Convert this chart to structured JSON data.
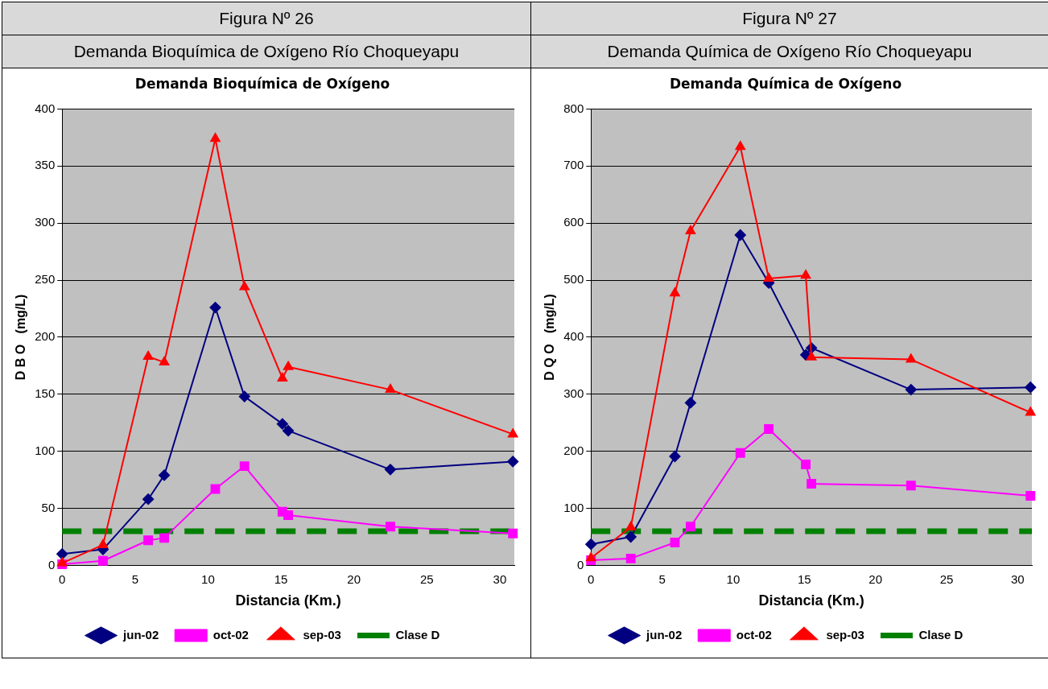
{
  "chart_data": [
    {
      "type": "line",
      "title": "Demanda Bioquímica de Oxígeno",
      "annotations": [
        "Figura Nº 26",
        "Demanda Bioquímica de Oxígeno Río Choqueyapu"
      ],
      "xlabel": "Distancia (Km.)",
      "ylabel": "D B O   (mg/L)",
      "x": [
        0,
        2.8,
        5.9,
        7,
        10.5,
        12.5,
        15.1,
        15.5,
        22.5,
        30.9
      ],
      "series": [
        {
          "name": "jun-02",
          "color": "#000080",
          "marker": "diamond",
          "values": [
            10,
            14,
            58,
            79,
            226,
            148,
            124,
            118,
            84,
            91
          ]
        },
        {
          "name": "oct-02",
          "color": "#ff00ff",
          "marker": "square",
          "values": [
            1,
            4,
            22,
            24,
            67,
            87,
            47,
            44,
            34,
            28
          ]
        },
        {
          "name": "sep-03",
          "color": "#ff0000",
          "marker": "triangle",
          "values": [
            2,
            18,
            183,
            178,
            374,
            244,
            164,
            174,
            154,
            115
          ]
        }
      ],
      "ref_lines": [
        {
          "axis": "y",
          "value": 30,
          "label": "Clase D",
          "color": "#008000",
          "line_style": "dashed"
        }
      ],
      "xlim": [
        0,
        31
      ],
      "xticks": [
        0,
        5,
        10,
        15,
        20,
        25,
        30
      ],
      "ylim": [
        0,
        400
      ],
      "yticks": [
        0,
        50,
        100,
        150,
        200,
        250,
        300,
        350,
        400
      ],
      "grid": "y",
      "legend": "bottom"
    },
    {
      "type": "line",
      "title": "Demanda Química de Oxígeno",
      "annotations": [
        "Figura Nº 27",
        "Demanda Química de Oxígeno Río Choqueyapu"
      ],
      "xlabel": "Distancia (Km.)",
      "ylabel": "D Q O   (mg/L)",
      "x": [
        0,
        2.8,
        5.9,
        7,
        10.5,
        12.5,
        15.1,
        15.5,
        22.5,
        30.9
      ],
      "series": [
        {
          "name": "jun-02",
          "color": "#000080",
          "marker": "diamond",
          "values": [
            37,
            50,
            191,
            285,
            579,
            495,
            369,
            381,
            308,
            312
          ]
        },
        {
          "name": "oct-02",
          "color": "#ff00ff",
          "marker": "square",
          "values": [
            9,
            12,
            40,
            68,
            197,
            239,
            177,
            143,
            140,
            122
          ]
        },
        {
          "name": "sep-03",
          "color": "#ff0000",
          "marker": "triangle",
          "values": [
            13,
            67,
            477,
            586,
            734,
            503,
            508,
            365,
            361,
            268
          ]
        }
      ],
      "ref_lines": [
        {
          "axis": "y",
          "value": 60,
          "label": "Clase D",
          "color": "#008000",
          "line_style": "dashed"
        }
      ],
      "xlim": [
        0,
        31
      ],
      "xticks": [
        0,
        5,
        10,
        15,
        20,
        25,
        30
      ],
      "ylim": [
        0,
        800
      ],
      "yticks": [
        0,
        100,
        200,
        300,
        400,
        500,
        600,
        700,
        800
      ],
      "grid": "y",
      "legend": "bottom"
    }
  ]
}
